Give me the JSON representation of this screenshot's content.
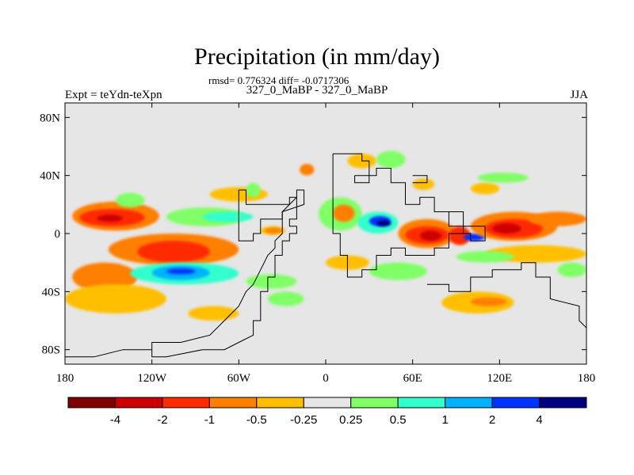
{
  "chart_data": {
    "type": "heatmap",
    "title": "Precipitation (in mm/day)",
    "stats_line": "rmsd= 0.776324 diff= -0.0717306",
    "left_label": "Expt = teYdn-teXpn",
    "center_label": "327_0_MaBP - 327_0_MaBP",
    "right_label": "JJA",
    "x_range": [
      -180,
      180
    ],
    "y_range": [
      -90,
      90
    ],
    "x_ticks": [
      {
        "value": -180,
        "label": "180"
      },
      {
        "value": -120,
        "label": "120W"
      },
      {
        "value": -60,
        "label": "60W"
      },
      {
        "value": 0,
        "label": "0"
      },
      {
        "value": 60,
        "label": "60E"
      },
      {
        "value": 120,
        "label": "120E"
      },
      {
        "value": 180,
        "label": "180"
      }
    ],
    "y_ticks": [
      {
        "value": 80,
        "label": "80N"
      },
      {
        "value": 40,
        "label": "40N"
      },
      {
        "value": 0,
        "label": "0"
      },
      {
        "value": -40,
        "label": "40S"
      },
      {
        "value": -80,
        "label": "80S"
      }
    ],
    "levels": [
      -4,
      -2,
      -1,
      -0.5,
      -0.25,
      0.25,
      0.5,
      1,
      2,
      4
    ],
    "level_labels": [
      "-4",
      "-2",
      "-1",
      "-0.5",
      "-0.25",
      "0.25",
      "0.5",
      "1",
      "2",
      "4"
    ],
    "colors": [
      "#7f0000",
      "#cc0000",
      "#ff2a00",
      "#ff7f00",
      "#ffbf00",
      "#e6e6e6",
      "#80ff66",
      "#33ffcc",
      "#00b2ff",
      "#0033ff",
      "#000080"
    ],
    "background_color": "#e6e6e6",
    "regions": [
      {
        "lon": [
          -175,
          -115
        ],
        "lat": [
          2,
          22
        ],
        "class": 3
      },
      {
        "lon": [
          -170,
          -125
        ],
        "lat": [
          5,
          17
        ],
        "class": 2
      },
      {
        "lon": [
          -158,
          -140
        ],
        "lat": [
          8,
          13
        ],
        "class": 1
      },
      {
        "lon": [
          -145,
          -125
        ],
        "lat": [
          18,
          28
        ],
        "class": 6
      },
      {
        "lon": [
          -110,
          -55
        ],
        "lat": [
          5,
          18
        ],
        "class": 6
      },
      {
        "lon": [
          -85,
          -50
        ],
        "lat": [
          8,
          15
        ],
        "class": 7
      },
      {
        "lon": [
          -80,
          -40
        ],
        "lat": [
          22,
          32
        ],
        "class": 4
      },
      {
        "lon": [
          -45,
          -28
        ],
        "lat": [
          -1,
          5
        ],
        "class": 4
      },
      {
        "lon": [
          -42,
          -30
        ],
        "lat": [
          0,
          4
        ],
        "class": 3
      },
      {
        "lon": [
          -150,
          -60
        ],
        "lat": [
          -22,
          0
        ],
        "class": 3
      },
      {
        "lon": [
          -130,
          -80
        ],
        "lat": [
          -20,
          -5
        ],
        "class": 2
      },
      {
        "lon": [
          -175,
          -130
        ],
        "lat": [
          -40,
          -20
        ],
        "class": 3
      },
      {
        "lon": [
          -180,
          -110
        ],
        "lat": [
          -55,
          -35
        ],
        "class": 4
      },
      {
        "lon": [
          -135,
          -60
        ],
        "lat": [
          -35,
          -20
        ],
        "class": 7
      },
      {
        "lon": [
          -120,
          -80
        ],
        "lat": [
          -32,
          -22
        ],
        "class": 8
      },
      {
        "lon": [
          -110,
          -90
        ],
        "lat": [
          -28,
          -24
        ],
        "class": 9
      },
      {
        "lon": [
          -55,
          -20
        ],
        "lat": [
          -38,
          -28
        ],
        "class": 6
      },
      {
        "lon": [
          -95,
          -60
        ],
        "lat": [
          -60,
          -50
        ],
        "class": 4
      },
      {
        "lon": [
          -40,
          -15
        ],
        "lat": [
          -50,
          -40
        ],
        "class": 6
      },
      {
        "lon": [
          -55,
          -45
        ],
        "lat": [
          25,
          35
        ],
        "class": 6
      },
      {
        "lon": [
          -18,
          -8
        ],
        "lat": [
          40,
          48
        ],
        "class": 3
      },
      {
        "lon": [
          -5,
          25
        ],
        "lat": [
          2,
          25
        ],
        "class": 6
      },
      {
        "lon": [
          5,
          20
        ],
        "lat": [
          8,
          20
        ],
        "class": 3
      },
      {
        "lon": [
          22,
          50
        ],
        "lat": [
          0,
          15
        ],
        "class": 7
      },
      {
        "lon": [
          30,
          45
        ],
        "lat": [
          5,
          12
        ],
        "class": 9
      },
      {
        "lon": [
          35,
          45
        ],
        "lat": [
          5,
          9
        ],
        "class": 10
      },
      {
        "lon": [
          15,
          35
        ],
        "lat": [
          45,
          55
        ],
        "class": 4
      },
      {
        "lon": [
          35,
          55
        ],
        "lat": [
          45,
          57
        ],
        "class": 6
      },
      {
        "lon": [
          60,
          75
        ],
        "lat": [
          30,
          38
        ],
        "class": 4
      },
      {
        "lon": [
          100,
          120
        ],
        "lat": [
          27,
          35
        ],
        "class": 4
      },
      {
        "lon": [
          105,
          140
        ],
        "lat": [
          35,
          42
        ],
        "class": 6
      },
      {
        "lon": [
          50,
          90
        ],
        "lat": [
          -10,
          10
        ],
        "class": 3
      },
      {
        "lon": [
          55,
          85
        ],
        "lat": [
          -7,
          5
        ],
        "class": 2
      },
      {
        "lon": [
          65,
          80
        ],
        "lat": [
          -5,
          2
        ],
        "class": 1
      },
      {
        "lon": [
          85,
          100
        ],
        "lat": [
          -8,
          5
        ],
        "class": 2
      },
      {
        "lon": [
          95,
          110
        ],
        "lat": [
          -5,
          0
        ],
        "class": 9
      },
      {
        "lon": [
          100,
          160
        ],
        "lat": [
          -5,
          15
        ],
        "class": 3
      },
      {
        "lon": [
          110,
          150
        ],
        "lat": [
          -3,
          10
        ],
        "class": 2
      },
      {
        "lon": [
          115,
          135
        ],
        "lat": [
          0,
          7
        ],
        "class": 1
      },
      {
        "lon": [
          140,
          180
        ],
        "lat": [
          5,
          15
        ],
        "class": 3
      },
      {
        "lon": [
          110,
          180
        ],
        "lat": [
          -20,
          -8
        ],
        "class": 4
      },
      {
        "lon": [
          90,
          130
        ],
        "lat": [
          -20,
          -12
        ],
        "class": 6
      },
      {
        "lon": [
          30,
          70
        ],
        "lat": [
          -32,
          -20
        ],
        "class": 6
      },
      {
        "lon": [
          80,
          130
        ],
        "lat": [
          -55,
          -40
        ],
        "class": 4
      },
      {
        "lon": [
          100,
          125
        ],
        "lat": [
          -50,
          -44
        ],
        "class": 3
      },
      {
        "lon": [
          0,
          30
        ],
        "lat": [
          -25,
          -15
        ],
        "class": 4
      },
      {
        "lon": [
          160,
          180
        ],
        "lat": [
          -30,
          -20
        ],
        "class": 6
      }
    ],
    "outline": [
      [
        [
          -60,
          30
        ],
        [
          -55,
          30
        ],
        [
          -55,
          20
        ],
        [
          -25,
          20
        ],
        [
          -25,
          25
        ],
        [
          -20,
          25
        ],
        [
          -20,
          30
        ],
        [
          -15,
          30
        ],
        [
          -15,
          20
        ],
        [
          -30,
          15
        ],
        [
          -30,
          10
        ],
        [
          -45,
          10
        ],
        [
          -45,
          0
        ],
        [
          -50,
          0
        ],
        [
          -50,
          -5
        ],
        [
          -60,
          -5
        ],
        [
          -60,
          30
        ]
      ],
      [
        [
          -20,
          25
        ],
        [
          -20,
          10
        ],
        [
          -25,
          10
        ],
        [
          -25,
          5
        ],
        [
          -20,
          5
        ],
        [
          -20,
          0
        ],
        [
          -25,
          0
        ],
        [
          -25,
          -5
        ],
        [
          -30,
          -5
        ],
        [
          -30,
          -15
        ],
        [
          -35,
          -15
        ],
        [
          -35,
          -30
        ],
        [
          -40,
          -30
        ],
        [
          -40,
          -40
        ],
        [
          -45,
          -40
        ],
        [
          -45,
          -60
        ],
        [
          -50,
          -60
        ],
        [
          -50,
          -70
        ],
        [
          -60,
          -75
        ],
        [
          -70,
          -80
        ],
        [
          -85,
          -80
        ],
        [
          -110,
          -85
        ],
        [
          -120,
          -85
        ],
        [
          -120,
          -75
        ],
        [
          -100,
          -75
        ],
        [
          -80,
          -70
        ],
        [
          -70,
          -60
        ],
        [
          -60,
          -50
        ],
        [
          -55,
          -40
        ],
        [
          -50,
          -35
        ],
        [
          -45,
          -25
        ],
        [
          -40,
          -15
        ],
        [
          -35,
          -10
        ],
        [
          -35,
          -5
        ],
        [
          -30,
          0
        ],
        [
          -30,
          15
        ],
        [
          -20,
          25
        ]
      ],
      [
        [
          5,
          55
        ],
        [
          25,
          55
        ],
        [
          25,
          50
        ],
        [
          30,
          50
        ],
        [
          30,
          40
        ],
        [
          35,
          40
        ],
        [
          35,
          45
        ],
        [
          45,
          45
        ],
        [
          45,
          35
        ],
        [
          55,
          35
        ],
        [
          55,
          20
        ],
        [
          65,
          20
        ],
        [
          65,
          25
        ],
        [
          75,
          25
        ],
        [
          75,
          15
        ],
        [
          85,
          15
        ],
        [
          85,
          5
        ],
        [
          95,
          5
        ],
        [
          95,
          0
        ],
        [
          85,
          0
        ],
        [
          85,
          -10
        ],
        [
          75,
          -10
        ],
        [
          75,
          -15
        ],
        [
          55,
          -15
        ],
        [
          55,
          -10
        ],
        [
          45,
          -10
        ],
        [
          45,
          -15
        ],
        [
          35,
          -15
        ],
        [
          35,
          -25
        ],
        [
          25,
          -25
        ],
        [
          25,
          -30
        ],
        [
          15,
          -30
        ],
        [
          15,
          -15
        ],
        [
          10,
          -15
        ],
        [
          10,
          0
        ],
        [
          5,
          0
        ],
        [
          5,
          55
        ]
      ],
      [
        [
          70,
          -35
        ],
        [
          85,
          -35
        ],
        [
          85,
          -40
        ],
        [
          100,
          -40
        ],
        [
          100,
          -30
        ],
        [
          115,
          -30
        ],
        [
          115,
          -25
        ],
        [
          135,
          -25
        ],
        [
          135,
          -20
        ],
        [
          145,
          -20
        ],
        [
          145,
          -30
        ],
        [
          155,
          -30
        ],
        [
          155,
          -45
        ],
        [
          175,
          -50
        ],
        [
          175,
          -60
        ],
        [
          180,
          -65
        ],
        [
          180,
          -80
        ]
      ],
      [
        [
          -180,
          -85
        ],
        [
          -160,
          -85
        ],
        [
          -140,
          -80
        ],
        [
          -120,
          -80
        ]
      ],
      [
        [
          85,
          15
        ],
        [
          95,
          15
        ],
        [
          95,
          5
        ],
        [
          110,
          5
        ],
        [
          110,
          -5
        ],
        [
          100,
          -5
        ],
        [
          100,
          0
        ],
        [
          90,
          0
        ]
      ],
      [
        [
          20,
          40
        ],
        [
          30,
          40
        ],
        [
          30,
          35
        ],
        [
          20,
          35
        ],
        [
          20,
          40
        ]
      ],
      [
        [
          60,
          40
        ],
        [
          70,
          40
        ],
        [
          70,
          35
        ],
        [
          60,
          35
        ]
      ]
    ]
  }
}
